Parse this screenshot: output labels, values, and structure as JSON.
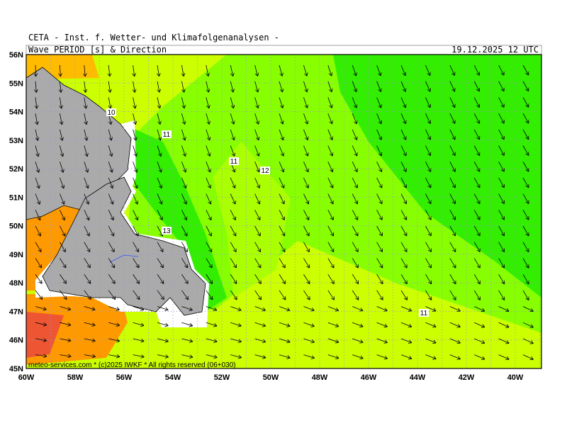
{
  "header": {
    "title": "CETA - Inst. f. Wetter- und Klimafolgenanalysen -",
    "subtitle": "Wave_PERIOD_[s]_&_Direction",
    "date": "19.12.2025 12 UTC"
  },
  "axes": {
    "lat_labels": [
      "56N",
      "55N",
      "54N",
      "53N",
      "52N",
      "51N",
      "50N",
      "49N",
      "48N",
      "47N",
      "46N",
      "45N"
    ],
    "lon_labels": [
      "60W",
      "58W",
      "56W",
      "54W",
      "52W",
      "50W",
      "48W",
      "46W",
      "44W",
      "42W",
      "40W"
    ]
  },
  "contour_labels": [
    "10",
    "11",
    "11",
    "12",
    "13",
    "11"
  ],
  "footer": "meteo-services.com * (c)2025 IWKF * All rights reserved (06+030)"
}
